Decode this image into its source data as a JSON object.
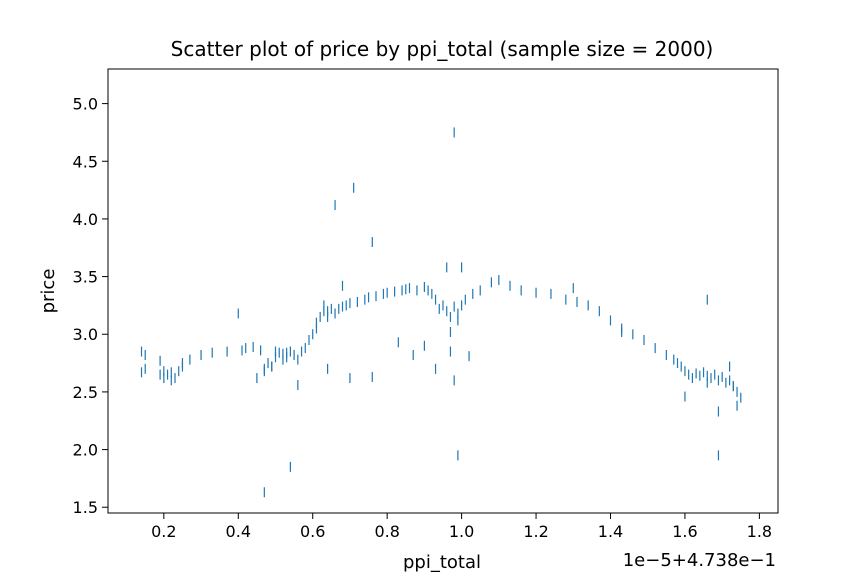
{
  "chart_data": {
    "type": "scatter",
    "title": "Scatter plot of price by ppi_total (sample size = 2000)",
    "xlabel": "ppi_total",
    "ylabel": "price",
    "x_offset_label": "1e−5+4.738e−1",
    "xlim": [
      0.05,
      1.85
    ],
    "ylim": [
      1.45,
      5.3
    ],
    "x_ticks": [
      0.2,
      0.4,
      0.6,
      0.8,
      1.0,
      1.2,
      1.4,
      1.6,
      1.8
    ],
    "x_tick_labels": [
      "0.2",
      "0.4",
      "0.6",
      "0.8",
      "1.0",
      "1.2",
      "1.4",
      "1.6",
      "1.8"
    ],
    "y_ticks": [
      1.5,
      2.0,
      2.5,
      3.0,
      3.5,
      4.0,
      4.5,
      5.0
    ],
    "y_tick_labels": [
      "1.5",
      "2.0",
      "2.5",
      "3.0",
      "3.5",
      "4.0",
      "4.5",
      "5.0"
    ],
    "grid": false,
    "marker": "|",
    "colors": {
      "points": "#1f77b4"
    },
    "series": [
      {
        "x": [
          0.14,
          0.14,
          0.15,
          0.15,
          0.19,
          0.19,
          0.2,
          0.2,
          0.21,
          0.22,
          0.22,
          0.23,
          0.24,
          0.25,
          0.25,
          0.27,
          0.3,
          0.33,
          0.37,
          0.41,
          0.42,
          0.44,
          0.46,
          0.47,
          0.48,
          0.49,
          0.5,
          0.51,
          0.52,
          0.53,
          0.54,
          0.55,
          0.56,
          0.57,
          0.58,
          0.59,
          0.6,
          0.61,
          0.61,
          0.62,
          0.63,
          0.63,
          0.64,
          0.64,
          0.65,
          0.66,
          0.67,
          0.68,
          0.69,
          0.7,
          0.72,
          0.74,
          0.75,
          0.77,
          0.79,
          0.8,
          0.82,
          0.84,
          0.85,
          0.86,
          0.88,
          0.9,
          0.91,
          0.92,
          0.93,
          0.94,
          0.95,
          0.96,
          0.97,
          0.98,
          0.99,
          1.0,
          1.01,
          1.03,
          1.05,
          1.08,
          1.1,
          1.13,
          1.16,
          1.2,
          1.24,
          1.28,
          1.31,
          1.34,
          1.37,
          1.4,
          1.43,
          1.46,
          1.49,
          1.52,
          1.55,
          1.57,
          1.58,
          1.59,
          1.6,
          1.61,
          1.62,
          1.63,
          1.64,
          1.65,
          1.66,
          1.67,
          1.68,
          1.69,
          1.7,
          1.71,
          1.72,
          1.73,
          1.74,
          1.75,
          1.74,
          1.73,
          1.6,
          1.69,
          1.66,
          1.72,
          1.43,
          1.3,
          1.02,
          1.0,
          0.99,
          0.97,
          0.93,
          0.9,
          0.96,
          0.98,
          0.87,
          0.83,
          0.76,
          0.76,
          0.71,
          0.7,
          0.68,
          0.66,
          0.64,
          0.56,
          0.54,
          0.47,
          0.4,
          1.69,
          1.66,
          0.98,
          0.99,
          0.97,
          0.45,
          0.47,
          0.49,
          0.5,
          0.52,
          0.53
        ],
        "y": [
          2.85,
          2.67,
          2.82,
          2.7,
          2.77,
          2.65,
          2.68,
          2.62,
          2.65,
          2.6,
          2.67,
          2.62,
          2.68,
          2.72,
          2.75,
          2.78,
          2.82,
          2.84,
          2.85,
          2.86,
          2.88,
          2.89,
          2.86,
          2.7,
          2.75,
          2.72,
          2.8,
          2.84,
          2.83,
          2.8,
          2.85,
          2.82,
          2.78,
          2.85,
          2.88,
          2.95,
          3.0,
          3.05,
          3.1,
          3.15,
          3.2,
          3.25,
          3.2,
          3.15,
          3.22,
          3.18,
          3.22,
          3.24,
          3.25,
          3.27,
          3.28,
          3.3,
          3.32,
          3.33,
          3.35,
          3.36,
          3.37,
          3.38,
          3.39,
          3.4,
          3.38,
          3.41,
          3.38,
          3.35,
          3.3,
          3.22,
          3.25,
          3.2,
          3.15,
          3.24,
          3.18,
          3.25,
          3.3,
          3.35,
          3.38,
          3.45,
          3.47,
          3.42,
          3.38,
          3.36,
          3.35,
          3.3,
          3.28,
          3.25,
          3.2,
          3.12,
          3.05,
          3.0,
          2.95,
          2.88,
          2.82,
          2.78,
          2.75,
          2.72,
          2.68,
          2.65,
          2.62,
          2.66,
          2.64,
          2.67,
          2.64,
          2.62,
          2.65,
          2.6,
          2.63,
          2.58,
          2.6,
          2.55,
          2.5,
          2.45,
          2.38,
          2.55,
          2.46,
          2.33,
          2.58,
          2.72,
          3.02,
          3.4,
          2.81,
          3.58,
          3.12,
          2.85,
          2.7,
          2.9,
          3.58,
          2.6,
          2.82,
          2.93,
          3.8,
          2.63,
          4.27,
          2.62,
          3.42,
          4.12,
          2.7,
          2.56,
          1.85,
          1.63,
          3.18,
          1.95,
          3.3,
          4.75,
          1.95,
          3.02,
          2.62,
          2.68,
          2.72,
          2.85,
          2.78,
          2.84
        ]
      }
    ]
  }
}
